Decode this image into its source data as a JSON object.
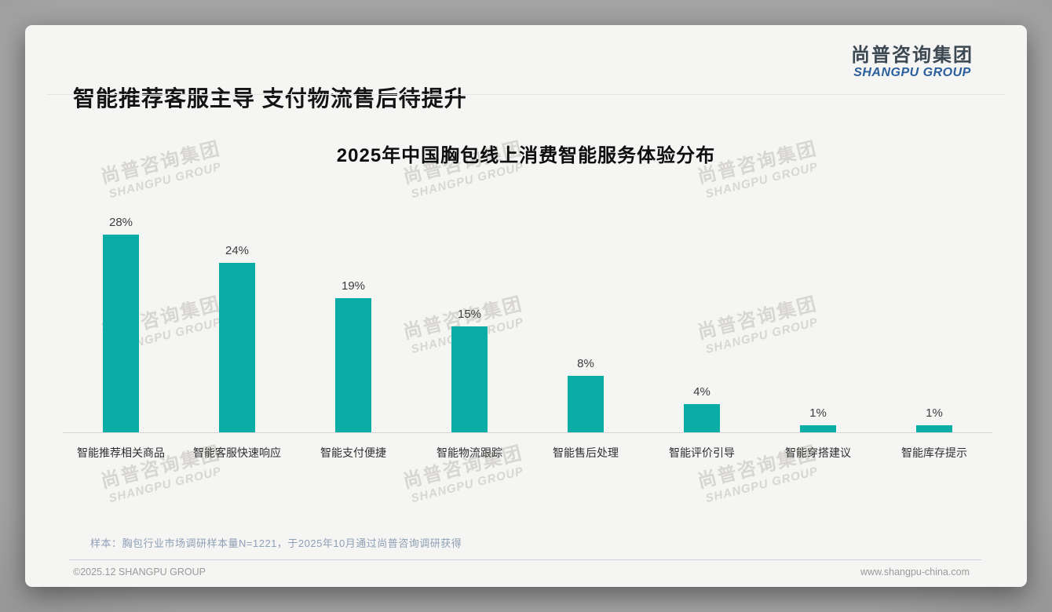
{
  "page": {
    "title": "智能推荐客服主导 支付物流售后待提升",
    "logo": {
      "cn": "尚普咨询集团",
      "en": "SHANGPU GROUP"
    },
    "watermark": {
      "cn": "尚普咨询集团",
      "en": "SHANGPU GROUP"
    },
    "footnote": "样本：胸包行业市场调研样本量N=1221，于2025年10月通过尚普咨询调研获得",
    "footer": {
      "left": "©2025.12 SHANGPU GROUP",
      "right": "www.shangpu-china.com"
    }
  },
  "chart_data": {
    "type": "bar",
    "title": "2025年中国胸包线上消费智能服务体验分布",
    "categories": [
      "智能推荐相关商品",
      "智能客服快速响应",
      "智能支付便捷",
      "智能物流跟踪",
      "智能售后处理",
      "智能评价引导",
      "智能穿搭建议",
      "智能库存提示"
    ],
    "values": [
      28,
      24,
      19,
      15,
      8,
      4,
      1,
      1
    ],
    "value_labels": [
      "28%",
      "24%",
      "19%",
      "15%",
      "8%",
      "4%",
      "1%",
      "1%"
    ],
    "unit": "%",
    "ylim": [
      0,
      30
    ],
    "grid": false,
    "legend": "none",
    "bar_color": "#09ada6",
    "value_label_position": "above bars",
    "baseline_axis_color": "#d6d6d6"
  },
  "colors": {
    "card_background": "#f5f5f4",
    "accent_teal": "#09ada6",
    "logo_cn": "#3c4852",
    "logo_en": "#2a5f9c",
    "footnote_text": "#8fa0b6",
    "footer_text": "#9a9a9a"
  }
}
